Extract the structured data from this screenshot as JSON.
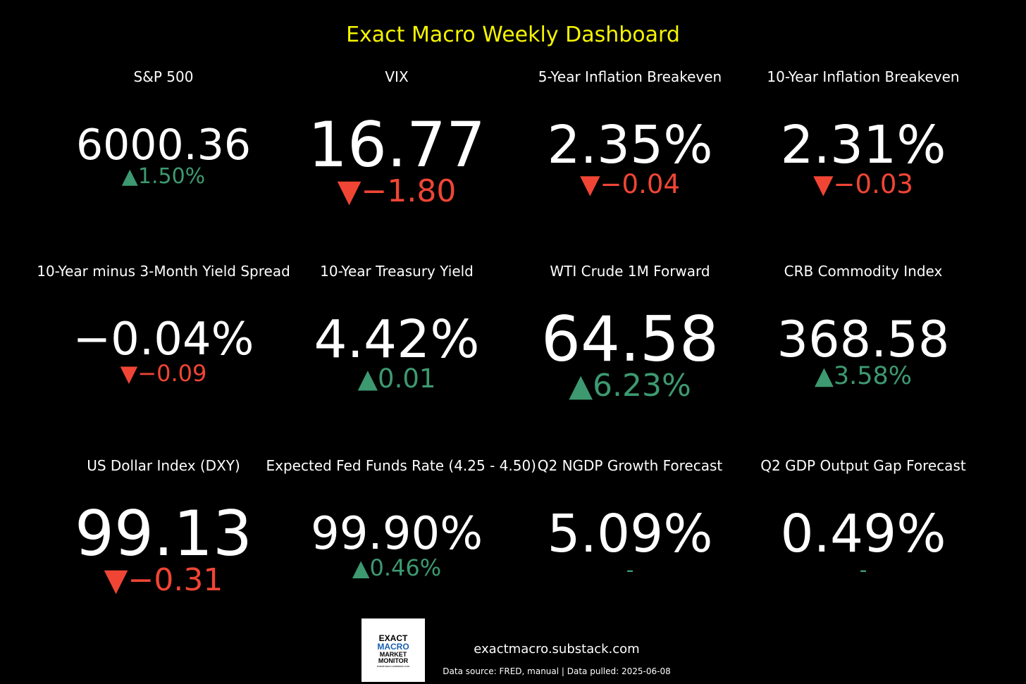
{
  "chart_data": {
    "type": "table",
    "title": "Exact Macro Weekly Dashboard",
    "tiles": [
      {
        "label": "S&P 500",
        "value": "6000.36",
        "arrow": "▲",
        "change": "1.50%",
        "direction": "up",
        "value_size": 60,
        "change_size": 30
      },
      {
        "label": "VIX",
        "value": "16.77",
        "arrow": "▼",
        "change": "−1.80",
        "direction": "down",
        "value_size": 88,
        "change_size": 44
      },
      {
        "label": "5-Year Inflation Breakeven",
        "value": "2.35%",
        "arrow": "▼",
        "change": "−0.04",
        "direction": "down",
        "value_size": 74,
        "change_size": 37
      },
      {
        "label": "10-Year Inflation Breakeven",
        "value": "2.31%",
        "arrow": "▼",
        "change": "−0.03",
        "direction": "down",
        "value_size": 74,
        "change_size": 37
      },
      {
        "label": "10-Year minus 3-Month Yield Spread",
        "value": "−0.04%",
        "arrow": "▼",
        "change": "−0.09",
        "direction": "down",
        "value_size": 64,
        "change_size": 32
      },
      {
        "label": "10-Year Treasury Yield",
        "value": "4.42%",
        "arrow": "▲",
        "change": "0.01",
        "direction": "up",
        "value_size": 74,
        "change_size": 37
      },
      {
        "label": "WTI Crude 1M Forward",
        "value": "64.58",
        "arrow": "▲",
        "change": "6.23%",
        "direction": "up",
        "value_size": 88,
        "change_size": 44
      },
      {
        "label": "CRB Commodity Index",
        "value": "368.58",
        "arrow": "▲",
        "change": "3.58%",
        "direction": "up",
        "value_size": 70,
        "change_size": 35
      },
      {
        "label": "US Dollar Index (DXY)",
        "value": "99.13",
        "arrow": "▼",
        "change": "−0.31",
        "direction": "down",
        "value_size": 88,
        "change_size": 44
      },
      {
        "label": "Expected Fed Funds Rate (4.25 - 4.50)",
        "value": "99.90%",
        "arrow": "▲",
        "change": "0.46%",
        "direction": "up",
        "value_size": 64,
        "change_size": 32
      },
      {
        "label": "Q2 NGDP Growth Forecast",
        "value": "5.09%",
        "arrow": "",
        "change": "-",
        "direction": "neutral",
        "value_size": 74,
        "change_size": 30
      },
      {
        "label": "Q2 GDP Output Gap Forecast",
        "value": "0.49%",
        "arrow": "",
        "change": "-",
        "direction": "neutral",
        "value_size": 74,
        "change_size": 30
      }
    ]
  },
  "colors": {
    "background": "#000000",
    "title": "#f5f500",
    "text": "#ffffff",
    "up": "#3d9970",
    "down": "#f04535",
    "neutral": "#3d9970"
  },
  "footer": {
    "logo_line1": "EXACT",
    "logo_line2": "MACRO",
    "logo_line3": "MARKET",
    "logo_line4": "MONITOR",
    "logo_line5": "exactmacro.substack.com",
    "url": "exactmacro.substack.com",
    "source": "Data source: FRED, manual | Data pulled: 2025-06-08"
  }
}
